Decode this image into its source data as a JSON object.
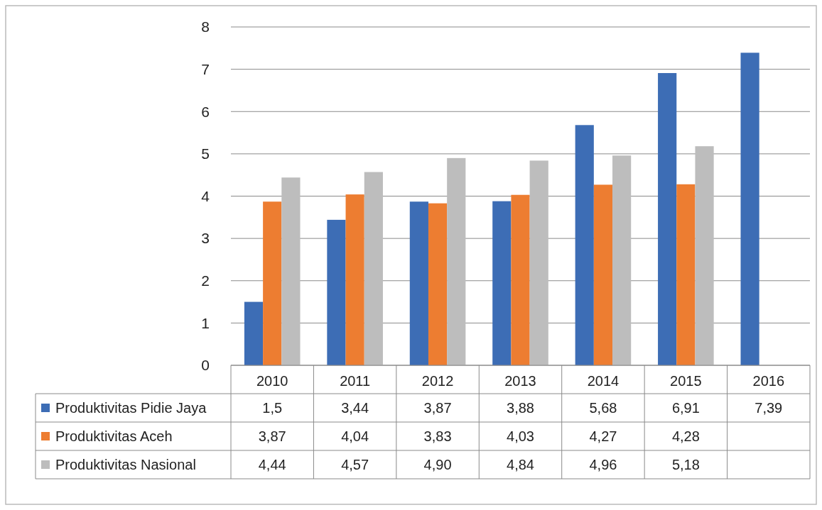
{
  "chart_data": {
    "type": "bar",
    "categories": [
      "2010",
      "2011",
      "2012",
      "2013",
      "2014",
      "2015",
      "2016"
    ],
    "series": [
      {
        "name": "Produktivitas Pidie Jaya",
        "color": "#3d6db5",
        "values": [
          1.5,
          3.44,
          3.87,
          3.88,
          5.68,
          6.91,
          7.39
        ],
        "value_labels": [
          "1,5",
          "3,44",
          "3,87",
          "3,88",
          "5,68",
          "6,91",
          "7,39"
        ]
      },
      {
        "name": "Produktivitas Aceh",
        "color": "#ed7d31",
        "values": [
          3.87,
          4.04,
          3.83,
          4.03,
          4.27,
          4.28,
          null
        ],
        "value_labels": [
          "3,87",
          "4,04",
          "3,83",
          "4,03",
          "4,27",
          "4,28",
          null
        ]
      },
      {
        "name": "Produktivitas Nasional",
        "color": "#bdbdbd",
        "values": [
          4.44,
          4.57,
          4.9,
          4.84,
          4.96,
          5.18,
          null
        ],
        "value_labels": [
          "4,44",
          "4,57",
          "4,90",
          "4,84",
          "4,96",
          "5,18",
          null
        ]
      }
    ],
    "ylim": [
      0,
      8
    ],
    "yticks": [
      0,
      1,
      2,
      3,
      4,
      5,
      6,
      7,
      8
    ],
    "grid": "y",
    "legend": "bottom"
  }
}
